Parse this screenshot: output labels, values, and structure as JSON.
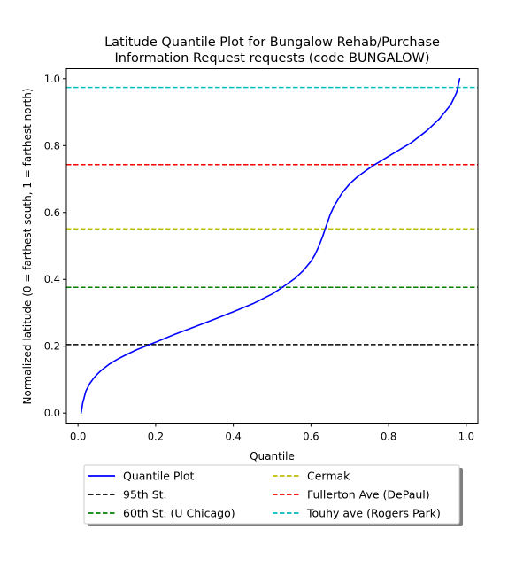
{
  "chart_data": {
    "type": "line",
    "title": "Latitude Quantile Plot for Bungalow Rehab/Purchase\nInformation Request  requests (code BUNGALOW)",
    "xlabel": "Quantile",
    "ylabel": "Normalized latitude (0 = farthest south, 1 = farthest north)",
    "xlim": [
      -0.03,
      1.03
    ],
    "ylim": [
      -0.03,
      1.03
    ],
    "x_ticks": [
      0.0,
      0.2,
      0.4,
      0.6,
      0.8,
      1.0
    ],
    "x_tick_labels": [
      "0.0",
      "0.2",
      "0.4",
      "0.6",
      "0.8",
      "1.0"
    ],
    "y_ticks": [
      0.0,
      0.2,
      0.4,
      0.6,
      0.8,
      1.0
    ],
    "y_tick_labels": [
      "0.0",
      "0.2",
      "0.4",
      "0.6",
      "0.8",
      "1.0"
    ],
    "grid": false,
    "legend_position": "below the plot",
    "series": [
      {
        "name": "Quantile Plot",
        "color": "#0000ff",
        "style": "solid",
        "x": [
          0.008,
          0.012,
          0.02,
          0.03,
          0.04,
          0.05,
          0.06,
          0.08,
          0.1,
          0.12,
          0.15,
          0.18,
          0.2,
          0.25,
          0.3,
          0.35,
          0.4,
          0.45,
          0.5,
          0.53,
          0.56,
          0.58,
          0.6,
          0.61,
          0.62,
          0.63,
          0.64,
          0.65,
          0.66,
          0.68,
          0.7,
          0.72,
          0.74,
          0.76,
          0.78,
          0.8,
          0.83,
          0.86,
          0.9,
          0.93,
          0.96,
          0.975,
          0.983
        ],
        "y": [
          0.0,
          0.03,
          0.065,
          0.088,
          0.104,
          0.117,
          0.128,
          0.146,
          0.16,
          0.172,
          0.189,
          0.203,
          0.212,
          0.236,
          0.258,
          0.28,
          0.303,
          0.327,
          0.356,
          0.379,
          0.404,
          0.426,
          0.454,
          0.473,
          0.498,
          0.528,
          0.562,
          0.595,
          0.62,
          0.658,
          0.686,
          0.707,
          0.724,
          0.74,
          0.754,
          0.768,
          0.789,
          0.81,
          0.846,
          0.879,
          0.922,
          0.958,
          1.0
        ]
      }
    ],
    "reference_lines": [
      {
        "name": "95th St.",
        "y": 0.205,
        "color": "#000000",
        "style": "dashed"
      },
      {
        "name": "60th St. (U Chicago)",
        "y": 0.376,
        "color": "#008000",
        "style": "dashed"
      },
      {
        "name": "Cermak",
        "y": 0.551,
        "color": "#bfbf00",
        "style": "dashed"
      },
      {
        "name": "Fullerton Ave (DePaul)",
        "y": 0.743,
        "color": "#ff0000",
        "style": "dashed"
      },
      {
        "name": "Touhy ave (Rogers Park)",
        "y": 0.974,
        "color": "#00bfbf",
        "style": "dashed"
      }
    ]
  }
}
